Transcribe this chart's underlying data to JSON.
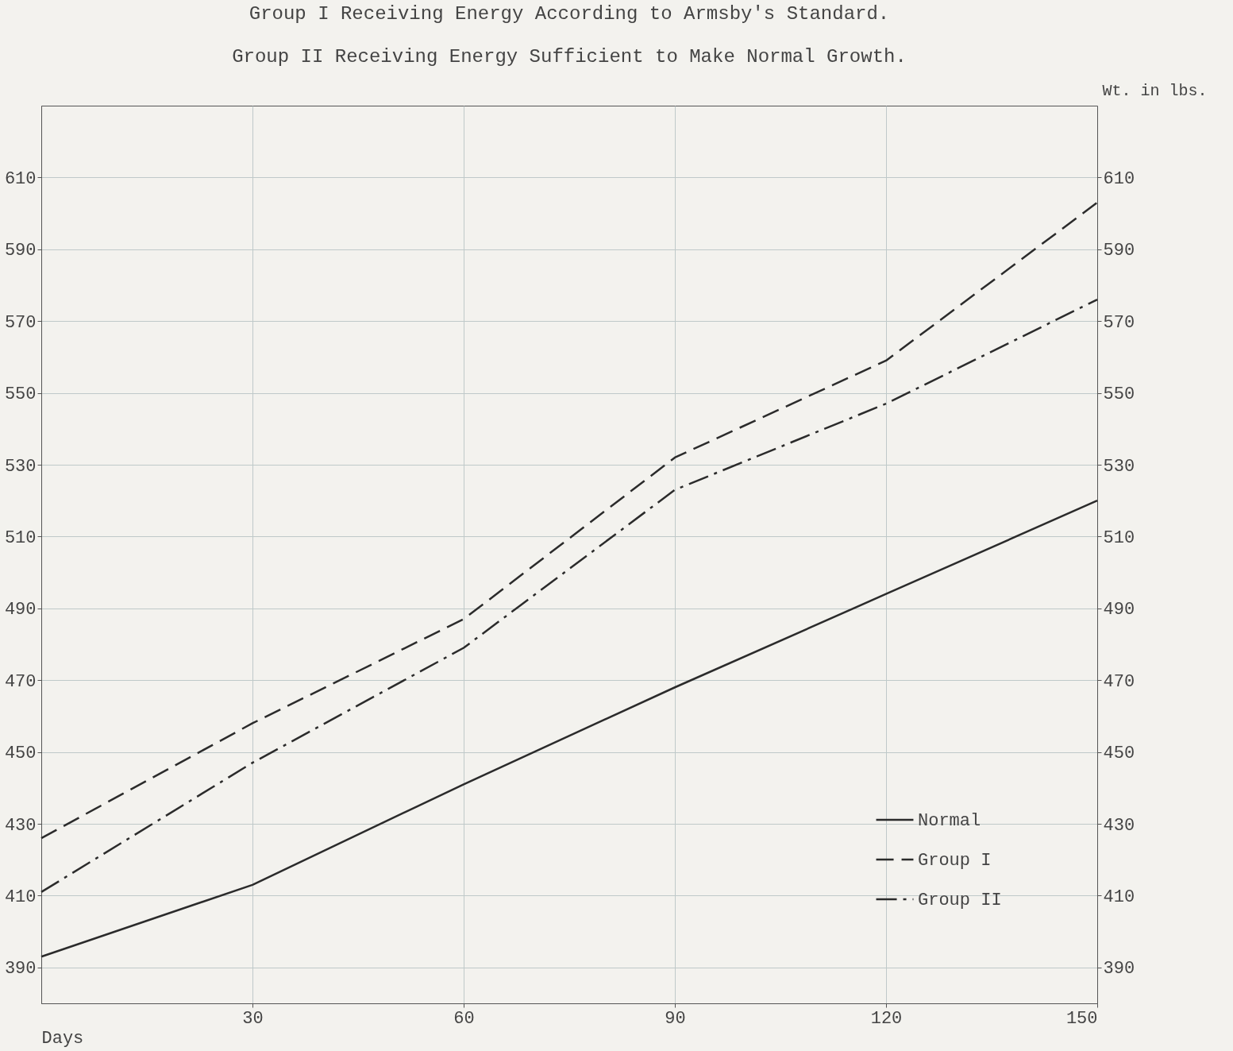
{
  "chart_data": {
    "type": "line",
    "title": "Group I  Receiving Energy According to Armsby's Standard.",
    "subtitle": "Group II Receiving Energy Sufficient to Make Normal Growth.",
    "xlabel": "Days",
    "y2label": "Wt. in lbs.",
    "x": [
      0,
      30,
      60,
      90,
      120,
      150
    ],
    "series": [
      {
        "name": "Normal",
        "color": "#2b2b2b",
        "line_style": "solid",
        "values": [
          393,
          413,
          441,
          468,
          494,
          520
        ]
      },
      {
        "name": "Group I",
        "color": "#2b2b2b",
        "line_style": "dashed",
        "values": [
          426,
          458,
          487,
          532,
          559,
          603
        ]
      },
      {
        "name": "Group II",
        "color": "#2b2b2b",
        "line_style": "dashdot",
        "values": [
          411,
          447,
          479,
          523,
          547,
          576
        ]
      }
    ],
    "xlim": [
      0,
      150
    ],
    "xticks": [
      30,
      60,
      90,
      120,
      150
    ],
    "ylim": [
      380,
      630
    ],
    "yticks": [
      390,
      410,
      430,
      450,
      470,
      490,
      510,
      530,
      550,
      570,
      590,
      610
    ],
    "y2lim": [
      380,
      630
    ],
    "y2ticks": [
      390,
      410,
      430,
      450,
      470,
      490,
      510,
      530,
      550,
      570,
      590,
      610
    ],
    "grid": true,
    "legend": "bottom right",
    "marker": "none"
  }
}
